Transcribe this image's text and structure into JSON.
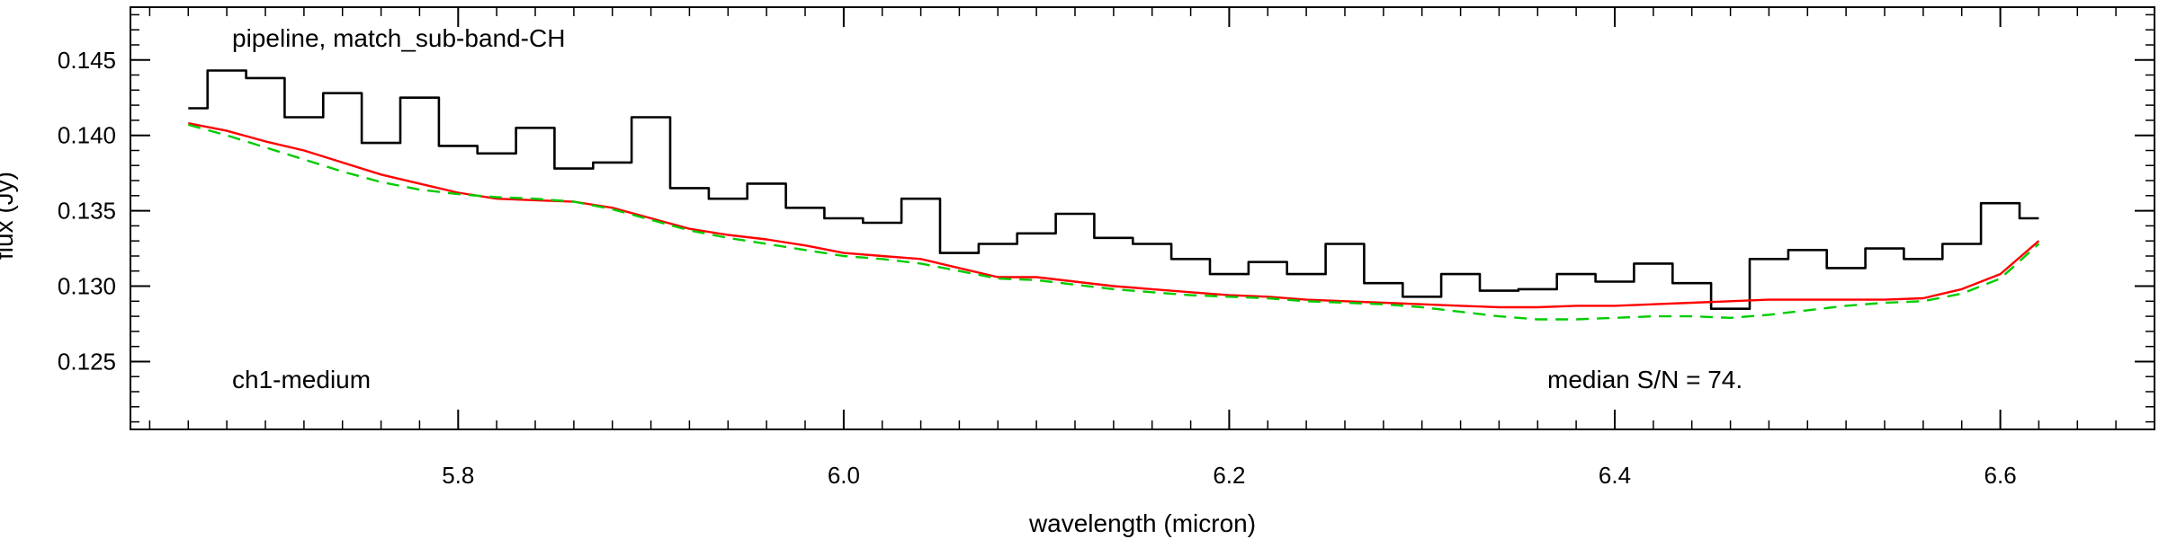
{
  "chart_data": {
    "type": "line",
    "xlabel": "wavelength (micron)",
    "ylabel": "flux (Jy)",
    "xlim": [
      5.63,
      6.68
    ],
    "ylim": [
      0.1205,
      0.1485
    ],
    "x_ticks": [
      5.8,
      6.0,
      6.2,
      6.4,
      6.6
    ],
    "y_ticks": [
      0.125,
      0.13,
      0.135,
      0.14,
      0.145
    ],
    "x_tick_labels": [
      "5.8",
      "6.0",
      "6.2",
      "6.4",
      "6.6"
    ],
    "y_tick_labels": [
      "0.125",
      "0.130",
      "0.135",
      "0.140",
      "0.145"
    ],
    "x_minor_step": 0.02,
    "y_minor_step": 0.001,
    "grid": false,
    "annotations": {
      "top_left": "pipeline, match_sub-band-CH",
      "bottom_left": "ch1-medium",
      "bottom_right": "median S/N =  74."
    },
    "series": [
      {
        "color": "#000000",
        "style": "steps",
        "x": [
          5.66,
          5.68,
          5.7,
          5.72,
          5.74,
          5.76,
          5.78,
          5.8,
          5.82,
          5.84,
          5.86,
          5.88,
          5.9,
          5.92,
          5.94,
          5.96,
          5.98,
          6.0,
          6.02,
          6.04,
          6.06,
          6.08,
          6.1,
          6.12,
          6.14,
          6.16,
          6.18,
          6.2,
          6.22,
          6.24,
          6.26,
          6.28,
          6.3,
          6.32,
          6.34,
          6.36,
          6.38,
          6.4,
          6.42,
          6.44,
          6.46,
          6.48,
          6.5,
          6.52,
          6.54,
          6.56,
          6.58,
          6.6,
          6.62
        ],
        "y": [
          0.1418,
          0.1443,
          0.1438,
          0.1412,
          0.1428,
          0.1395,
          0.1425,
          0.1393,
          0.1388,
          0.1405,
          0.1378,
          0.1382,
          0.1412,
          0.1365,
          0.1358,
          0.1368,
          0.1352,
          0.1345,
          0.1342,
          0.1358,
          0.1322,
          0.1328,
          0.1335,
          0.1348,
          0.1332,
          0.1328,
          0.1318,
          0.1308,
          0.1316,
          0.1308,
          0.1328,
          0.1302,
          0.1293,
          0.1308,
          0.1297,
          0.1298,
          0.1308,
          0.1303,
          0.1315,
          0.1302,
          0.1285,
          0.1318,
          0.1324,
          0.1312,
          0.1325,
          0.1318,
          0.1328,
          0.1355,
          0.1345
        ]
      },
      {
        "color": "#ff0000",
        "style": "line",
        "x": [
          5.66,
          5.68,
          5.7,
          5.72,
          5.74,
          5.76,
          5.78,
          5.8,
          5.82,
          5.84,
          5.86,
          5.88,
          5.9,
          5.92,
          5.94,
          5.96,
          5.98,
          6.0,
          6.02,
          6.04,
          6.06,
          6.08,
          6.1,
          6.12,
          6.14,
          6.16,
          6.18,
          6.2,
          6.22,
          6.24,
          6.26,
          6.28,
          6.3,
          6.32,
          6.34,
          6.36,
          6.38,
          6.4,
          6.42,
          6.44,
          6.46,
          6.48,
          6.5,
          6.52,
          6.54,
          6.56,
          6.58,
          6.6,
          6.62
        ],
        "y": [
          0.1408,
          0.1403,
          0.1396,
          0.139,
          0.1382,
          0.1374,
          0.1368,
          0.1362,
          0.1358,
          0.1357,
          0.1356,
          0.1352,
          0.1345,
          0.1338,
          0.1334,
          0.1331,
          0.1327,
          0.1322,
          0.132,
          0.1318,
          0.1312,
          0.1306,
          0.1306,
          0.1303,
          0.13,
          0.1298,
          0.1296,
          0.1294,
          0.1293,
          0.1291,
          0.129,
          0.1289,
          0.1288,
          0.1287,
          0.1286,
          0.1286,
          0.1287,
          0.1287,
          0.1288,
          0.1289,
          0.129,
          0.1291,
          0.1291,
          0.1291,
          0.1291,
          0.1292,
          0.1298,
          0.1308,
          0.133
        ]
      },
      {
        "color": "#00cc00",
        "style": "dashed",
        "x": [
          5.66,
          5.68,
          5.7,
          5.72,
          5.74,
          5.76,
          5.78,
          5.8,
          5.82,
          5.84,
          5.86,
          5.88,
          5.9,
          5.92,
          5.94,
          5.96,
          5.98,
          6.0,
          6.02,
          6.04,
          6.06,
          6.08,
          6.1,
          6.12,
          6.14,
          6.16,
          6.18,
          6.2,
          6.22,
          6.24,
          6.26,
          6.28,
          6.3,
          6.32,
          6.34,
          6.36,
          6.38,
          6.4,
          6.42,
          6.44,
          6.46,
          6.48,
          6.5,
          6.52,
          6.54,
          6.56,
          6.58,
          6.6,
          6.62
        ],
        "y": [
          0.1407,
          0.14,
          0.1392,
          0.1384,
          0.1376,
          0.1369,
          0.1364,
          0.1361,
          0.1359,
          0.1358,
          0.1356,
          0.1351,
          0.1344,
          0.1337,
          0.1332,
          0.1328,
          0.1324,
          0.132,
          0.1318,
          0.1315,
          0.131,
          0.1305,
          0.1304,
          0.1301,
          0.1298,
          0.1296,
          0.1294,
          0.1293,
          0.1292,
          0.129,
          0.1289,
          0.1288,
          0.1286,
          0.1283,
          0.128,
          0.1278,
          0.1278,
          0.1279,
          0.128,
          0.128,
          0.1279,
          0.1281,
          0.1284,
          0.1287,
          0.1289,
          0.129,
          0.1295,
          0.1305,
          0.1328
        ]
      }
    ]
  }
}
